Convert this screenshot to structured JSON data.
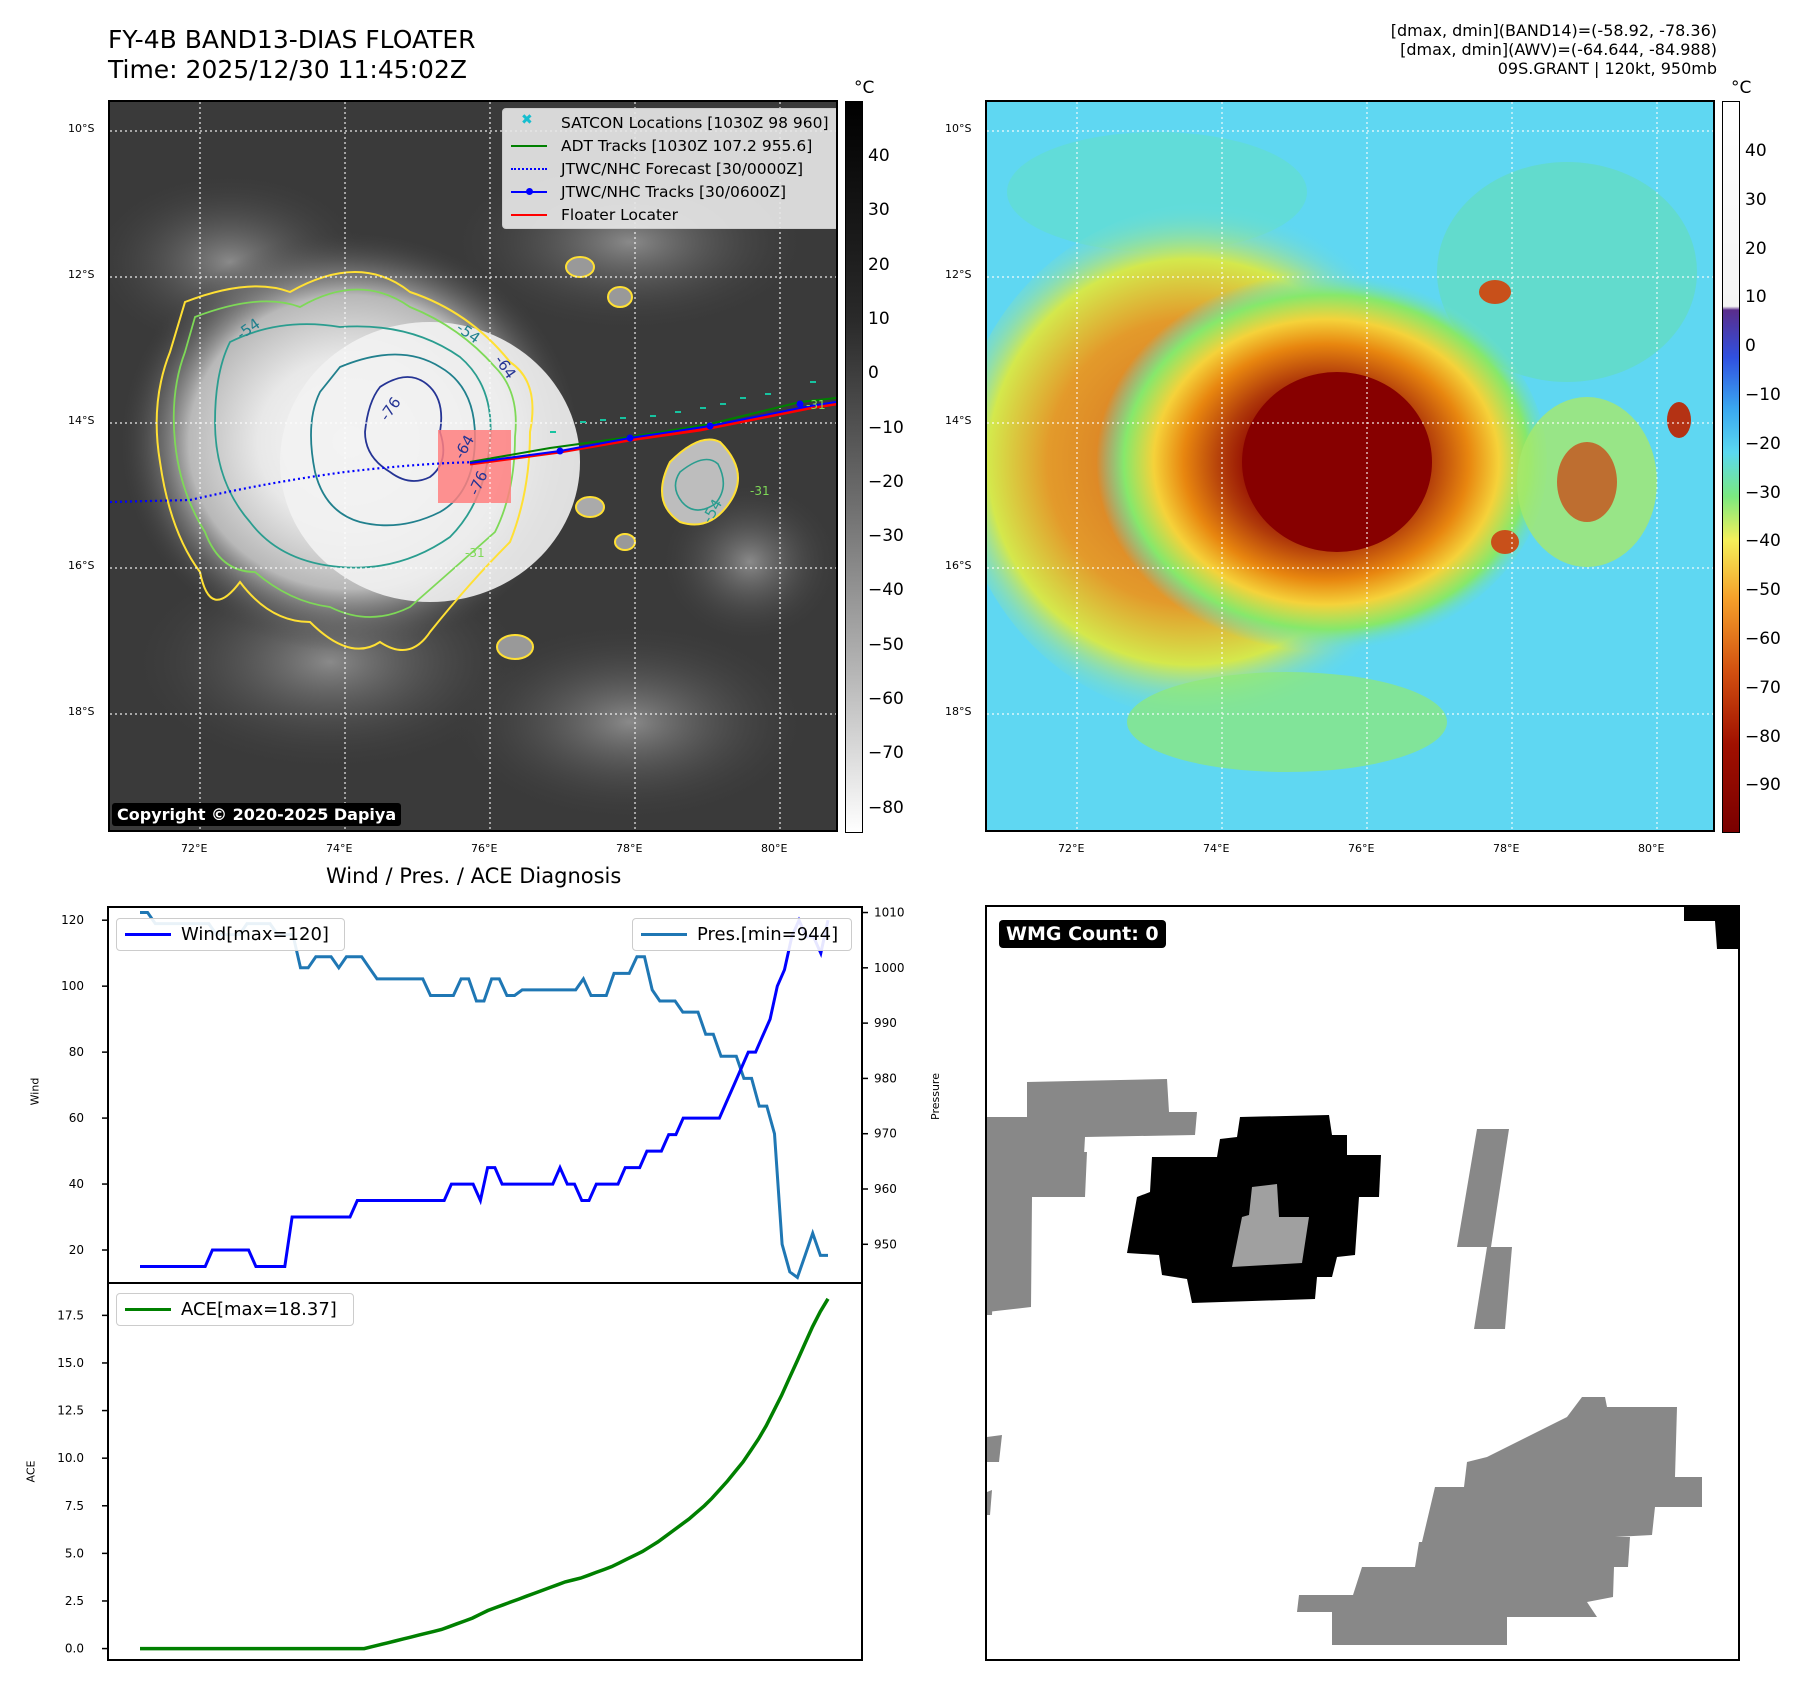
{
  "header": {
    "title_line1": "FY-4B BAND13-DIAS FLOATER",
    "title_line2": "Time: 2025/12/30 11:45:02Z",
    "info_line1": "[dmax, dmin](BAND14)=(-58.92, -78.36)",
    "info_line2": "[dmax, dmin](AWV)=(-64.644, -84.988)",
    "info_line3": "09S.GRANT | 120kt, 950mb"
  },
  "map": {
    "lat_labels": [
      "10°S",
      "12°S",
      "14°S",
      "16°S",
      "18°S"
    ],
    "lon_labels": [
      "72°E",
      "74°E",
      "76°E",
      "78°E",
      "80°E"
    ],
    "copyright": "Copyright © 2020-2025 Dapiya",
    "contour_labels": [
      "-54",
      "-54",
      "-64",
      "-64",
      "-76",
      "-76",
      "-31",
      "-54",
      "-31",
      "-31"
    ],
    "legend": [
      {
        "label": "SATCON Locations [1030Z 98 960]",
        "color": "#17becf",
        "style": "x"
      },
      {
        "label": "ADT Tracks [1030Z 107.2 955.6]",
        "color": "#008000",
        "style": "solid"
      },
      {
        "label": "JTWC/NHC Forecast [30/0000Z]",
        "color": "#0000ff",
        "style": "dotted"
      },
      {
        "label": "JTWC/NHC Tracks [30/0600Z]",
        "color": "#0000ff",
        "style": "marker"
      },
      {
        "label": "Floater Locater",
        "color": "#ff0000",
        "style": "solid"
      }
    ]
  },
  "colorbar_left": {
    "unit": "°C",
    "ticks": [
      "40",
      "30",
      "20",
      "10",
      "0",
      "−10",
      "−20",
      "−30",
      "−40",
      "−50",
      "−60",
      "−70",
      "−80"
    ]
  },
  "colorbar_right": {
    "unit": "°C",
    "ticks": [
      "40",
      "30",
      "20",
      "10",
      "0",
      "−10",
      "−20",
      "−30",
      "−40",
      "−50",
      "−60",
      "−70",
      "−80",
      "−90"
    ]
  },
  "diagnosis": {
    "title": "Wind / Pres. / ACE Diagnosis",
    "wind_legend": "Wind[max=120]",
    "pres_legend": "Pres.[min=944]",
    "ace_legend": "ACE[max=18.37]",
    "ylabel_wind": "Wind",
    "ylabel_pres": "Pressure",
    "ylabel_ace": "ACE",
    "wind_ticks": [
      "20",
      "40",
      "60",
      "80",
      "100",
      "120"
    ],
    "pres_ticks": [
      "950",
      "960",
      "970",
      "980",
      "990",
      "1000",
      "1010"
    ],
    "ace_ticks": [
      "0.0",
      "2.5",
      "5.0",
      "7.5",
      "10.0",
      "12.5",
      "15.0",
      "17.5"
    ]
  },
  "wmg": {
    "label": "WMG Count: 0"
  },
  "chart_data": [
    {
      "type": "line",
      "title": "Wind / Pres. / ACE Diagnosis",
      "ylabel": "Wind",
      "ylim": [
        10,
        124
      ],
      "grid": false,
      "legend_placement": "top-left",
      "series": [
        {
          "name": "Wind[max=120]",
          "color": "#0000ff",
          "values": [
            15,
            15,
            15,
            15,
            15,
            15,
            15,
            15,
            15,
            15,
            20,
            20,
            20,
            20,
            20,
            20,
            15,
            15,
            15,
            15,
            15,
            30,
            30,
            30,
            30,
            30,
            30,
            30,
            30,
            30,
            35,
            35,
            35,
            35,
            35,
            35,
            35,
            35,
            35,
            35,
            35,
            35,
            35,
            40,
            40,
            40,
            40,
            35,
            45,
            45,
            40,
            40,
            40,
            40,
            40,
            40,
            40,
            40,
            45,
            40,
            40,
            35,
            35,
            40,
            40,
            40,
            40,
            45,
            45,
            45,
            50,
            50,
            50,
            55,
            55,
            60,
            60,
            60,
            60,
            60,
            60,
            65,
            70,
            75,
            80,
            80,
            85,
            90,
            100,
            105,
            115,
            120,
            115,
            115,
            110,
            120
          ]
        }
      ]
    },
    {
      "type": "line",
      "ylabel": "Pressure",
      "ylim": [
        943,
        1011
      ],
      "grid": false,
      "legend_placement": "top-right",
      "series": [
        {
          "name": "Pres.[min=944]",
          "color": "#1f77b4",
          "values": [
            1010,
            1010,
            1008,
            1008,
            1008,
            1008,
            1008,
            1008,
            1008,
            1008,
            1006,
            1006,
            1006,
            1006,
            1008,
            1008,
            1008,
            1008,
            1006,
            1006,
            1006,
            1000,
            1000,
            1002,
            1002,
            1002,
            1000,
            1002,
            1002,
            1002,
            1000,
            998,
            998,
            998,
            998,
            998,
            998,
            998,
            995,
            995,
            995,
            995,
            998,
            998,
            994,
            994,
            998,
            998,
            995,
            995,
            996,
            996,
            996,
            996,
            996,
            996,
            996,
            996,
            998,
            995,
            995,
            995,
            999,
            999,
            999,
            1002,
            1002,
            996,
            994,
            994,
            994,
            992,
            992,
            992,
            988,
            988,
            984,
            984,
            984,
            980,
            980,
            975,
            975,
            970,
            950,
            945,
            944,
            948,
            952,
            948,
            948
          ]
        }
      ]
    },
    {
      "type": "line",
      "ylabel": "ACE",
      "ylim": [
        -0.6,
        19.2
      ],
      "grid": false,
      "legend_placement": "top-left",
      "series": [
        {
          "name": "ACE[max=18.37]",
          "color": "#008000",
          "values": [
            0,
            0,
            0,
            0,
            0,
            0,
            0,
            0,
            0,
            0,
            0,
            0,
            0,
            0,
            0,
            0,
            0,
            0,
            0,
            0,
            0,
            0,
            0,
            0,
            0,
            0,
            0,
            0,
            0,
            0,
            0.1,
            0.2,
            0.3,
            0.4,
            0.5,
            0.6,
            0.7,
            0.8,
            0.9,
            1.0,
            1.15,
            1.3,
            1.45,
            1.6,
            1.8,
            2.0,
            2.15,
            2.3,
            2.45,
            2.6,
            2.75,
            2.9,
            3.05,
            3.2,
            3.35,
            3.5,
            3.6,
            3.7,
            3.85,
            4.0,
            4.15,
            4.3,
            4.5,
            4.7,
            4.9,
            5.1,
            5.35,
            5.6,
            5.9,
            6.2,
            6.5,
            6.8,
            7.15,
            7.5,
            7.9,
            8.35,
            8.8,
            9.3,
            9.8,
            10.4,
            11.0,
            11.7,
            12.5,
            13.3,
            14.2,
            15.1,
            16.0,
            16.9,
            17.7,
            18.37
          ]
        }
      ]
    }
  ]
}
